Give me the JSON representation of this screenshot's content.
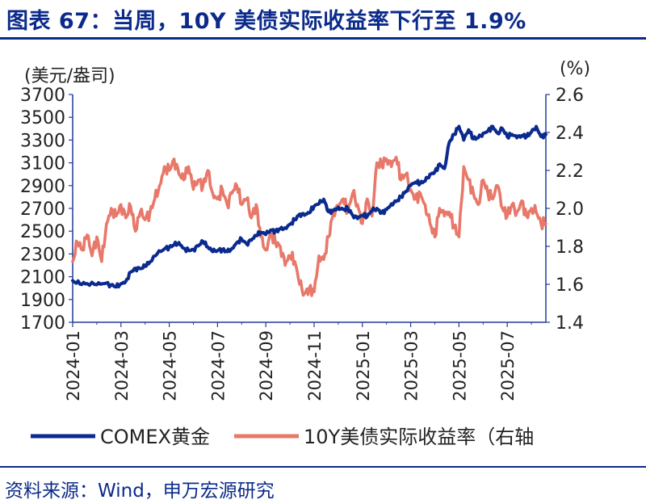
{
  "header": {
    "title": "图表 67：当周，10Y 美债实际收益率下行至 1.9%"
  },
  "footer": {
    "source": "资料来源：Wind，申万宏源研究"
  },
  "colors": {
    "gold": "#0a2a8e",
    "yield": "#e8786a",
    "axis": "#1f3c99",
    "text": "#222222"
  },
  "chart_data": {
    "type": "line",
    "left_unit_label": "(美元/盎司)",
    "right_unit_label": "(%)",
    "y_left": {
      "ylim": [
        1700,
        3700
      ],
      "ticks": [
        "3700",
        "3500",
        "3300",
        "3100",
        "2900",
        "2700",
        "2500",
        "2300",
        "2100",
        "1900",
        "1700"
      ]
    },
    "y_right": {
      "ylim": [
        1.4,
        2.6
      ],
      "ticks": [
        "2.6",
        "2.4",
        "2.2",
        "2.0",
        "1.8",
        "1.6",
        "1.4"
      ]
    },
    "x_ticks": [
      "2024-01",
      "2024-03",
      "2024-05",
      "2024-07",
      "2024-09",
      "2024-11",
      "2025-01",
      "2025-03",
      "2025-05",
      "2025-07"
    ],
    "x_range_months": [
      0,
      19.6
    ],
    "series": [
      {
        "name": "COMEX黄金",
        "axis": "left",
        "x": [
          0.0,
          0.3,
          0.6,
          1.0,
          1.3,
          1.6,
          1.8,
          2.0,
          2.2,
          2.4,
          2.6,
          2.8,
          3.0,
          3.2,
          3.5,
          3.8,
          4.0,
          4.2,
          4.4,
          4.6,
          4.8,
          5.0,
          5.2,
          5.4,
          5.6,
          5.8,
          6.0,
          6.2,
          6.4,
          6.6,
          6.8,
          7.0,
          7.2,
          7.4,
          7.6,
          7.8,
          8.0,
          8.2,
          8.4,
          8.6,
          8.8,
          9.0,
          9.2,
          9.4,
          9.6,
          9.8,
          10.0,
          10.2,
          10.4,
          10.6,
          10.8,
          11.0,
          11.2,
          11.4,
          11.6,
          11.8,
          12.0,
          12.2,
          12.4,
          12.6,
          12.8,
          13.0,
          13.2,
          13.4,
          13.6,
          13.8,
          14.0,
          14.2,
          14.4,
          14.6,
          14.8,
          15.0,
          15.2,
          15.4,
          15.6,
          15.8,
          16.0,
          16.2,
          16.4,
          16.6,
          16.8,
          17.0,
          17.2,
          17.4,
          17.6,
          17.8,
          18.0,
          18.2,
          18.4,
          18.6,
          18.8,
          19.0,
          19.2,
          19.4,
          19.6
        ],
        "values": [
          2065,
          2035,
          2040,
          2030,
          2040,
          2030,
          2010,
          2040,
          2060,
          2140,
          2175,
          2170,
          2190,
          2230,
          2300,
          2345,
          2360,
          2380,
          2400,
          2350,
          2330,
          2340,
          2370,
          2410,
          2360,
          2320,
          2330,
          2340,
          2320,
          2350,
          2400,
          2430,
          2390,
          2420,
          2460,
          2490,
          2470,
          2510,
          2500,
          2520,
          2530,
          2560,
          2600,
          2650,
          2640,
          2660,
          2720,
          2740,
          2780,
          2670,
          2680,
          2710,
          2690,
          2700,
          2640,
          2610,
          2640,
          2630,
          2680,
          2700,
          2660,
          2690,
          2740,
          2760,
          2800,
          2850,
          2900,
          2930,
          2920,
          2940,
          3000,
          3020,
          3090,
          3050,
          3280,
          3350,
          3420,
          3300,
          3390,
          3310,
          3320,
          3360,
          3380,
          3420,
          3360,
          3400,
          3330,
          3350,
          3320,
          3340,
          3330,
          3370,
          3420,
          3330,
          3350
        ]
      },
      {
        "name": "10Y美债实际收益率（右轴",
        "axis": "right",
        "x": [
          0.0,
          0.2,
          0.4,
          0.6,
          0.8,
          1.0,
          1.2,
          1.4,
          1.6,
          1.8,
          2.0,
          2.2,
          2.4,
          2.6,
          2.8,
          3.0,
          3.2,
          3.4,
          3.6,
          3.8,
          4.0,
          4.2,
          4.4,
          4.6,
          4.8,
          5.0,
          5.2,
          5.4,
          5.6,
          5.8,
          6.0,
          6.2,
          6.4,
          6.6,
          6.8,
          7.0,
          7.2,
          7.4,
          7.6,
          7.8,
          8.0,
          8.2,
          8.4,
          8.6,
          8.8,
          9.0,
          9.2,
          9.4,
          9.6,
          9.8,
          10.0,
          10.2,
          10.4,
          10.6,
          10.8,
          11.0,
          11.2,
          11.4,
          11.6,
          11.8,
          12.0,
          12.2,
          12.4,
          12.6,
          12.8,
          13.0,
          13.2,
          13.4,
          13.6,
          13.8,
          14.0,
          14.2,
          14.4,
          14.6,
          14.8,
          15.0,
          15.2,
          15.4,
          15.6,
          15.8,
          16.0,
          16.2,
          16.4,
          16.6,
          16.8,
          17.0,
          17.2,
          17.4,
          17.6,
          17.8,
          18.0,
          18.2,
          18.4,
          18.6,
          18.8,
          19.0,
          19.2,
          19.4,
          19.6
        ],
        "values": [
          1.72,
          1.82,
          1.78,
          1.86,
          1.75,
          1.85,
          1.72,
          1.92,
          2.0,
          1.96,
          2.02,
          1.95,
          2.01,
          1.88,
          1.98,
          1.94,
          1.98,
          2.05,
          2.12,
          2.22,
          2.2,
          2.26,
          2.18,
          2.15,
          2.22,
          2.1,
          2.15,
          2.12,
          2.2,
          2.08,
          2.05,
          2.1,
          2.02,
          2.08,
          2.12,
          2.02,
          2.05,
          1.95,
          2.02,
          1.85,
          1.78,
          1.87,
          1.82,
          1.8,
          1.7,
          1.75,
          1.72,
          1.6,
          1.55,
          1.58,
          1.56,
          1.75,
          1.73,
          1.85,
          1.98,
          2.0,
          2.05,
          1.98,
          2.08,
          2.02,
          1.92,
          2.05,
          1.96,
          2.24,
          2.23,
          2.26,
          2.22,
          2.27,
          2.15,
          2.18,
          2.1,
          2.05,
          2.08,
          2.02,
          1.92,
          1.85,
          2.0,
          1.96,
          1.98,
          1.9,
          1.85,
          2.22,
          2.15,
          2.08,
          2.02,
          2.15,
          2.08,
          2.05,
          2.12,
          2.0,
          1.96,
          2.02,
          1.98,
          2.04,
          1.96,
          2.0,
          1.98,
          1.92,
          1.92
        ]
      }
    ],
    "legend": [
      "COMEX黄金",
      "10Y美债实际收益率（右轴"
    ],
    "legend_placement": "bottom"
  }
}
